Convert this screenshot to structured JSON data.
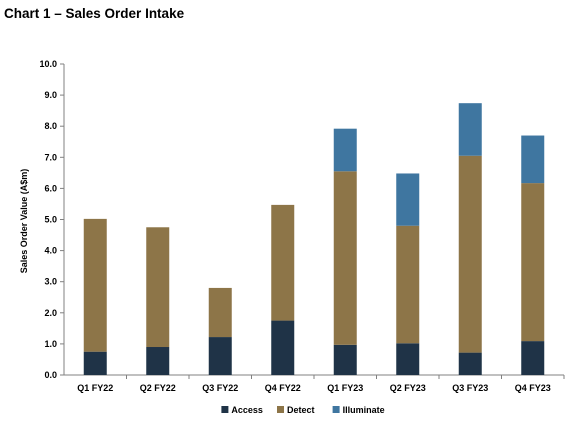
{
  "title": "Chart 1 – Sales Order Intake",
  "chart_data": {
    "type": "bar",
    "stacked": true,
    "categories": [
      "Q1 FY22",
      "Q2 FY22",
      "Q3 FY22",
      "Q4 FY22",
      "Q1 FY23",
      "Q2 FY23",
      "Q3 FY23",
      "Q4 FY23"
    ],
    "series": [
      {
        "name": "Access",
        "color": "#1f3347",
        "values": [
          0.75,
          0.9,
          1.22,
          1.75,
          0.97,
          1.02,
          0.72,
          1.09
        ]
      },
      {
        "name": "Detect",
        "color": "#8d7548",
        "values": [
          4.27,
          3.85,
          1.58,
          3.72,
          5.58,
          3.78,
          6.33,
          5.08
        ]
      },
      {
        "name": "Illuminate",
        "color": "#3f76a0",
        "values": [
          0,
          0,
          0,
          0,
          1.37,
          1.68,
          1.69,
          1.53
        ]
      }
    ],
    "ylabel": "Sales Order Value (A$m)",
    "xlabel": "",
    "ylim": [
      0,
      10
    ],
    "yticks": [
      "0.0",
      "1.0",
      "2.0",
      "3.0",
      "4.0",
      "5.0",
      "6.0",
      "7.0",
      "8.0",
      "9.0",
      "10.0"
    ],
    "grid": false,
    "legend": "bottom-center"
  }
}
